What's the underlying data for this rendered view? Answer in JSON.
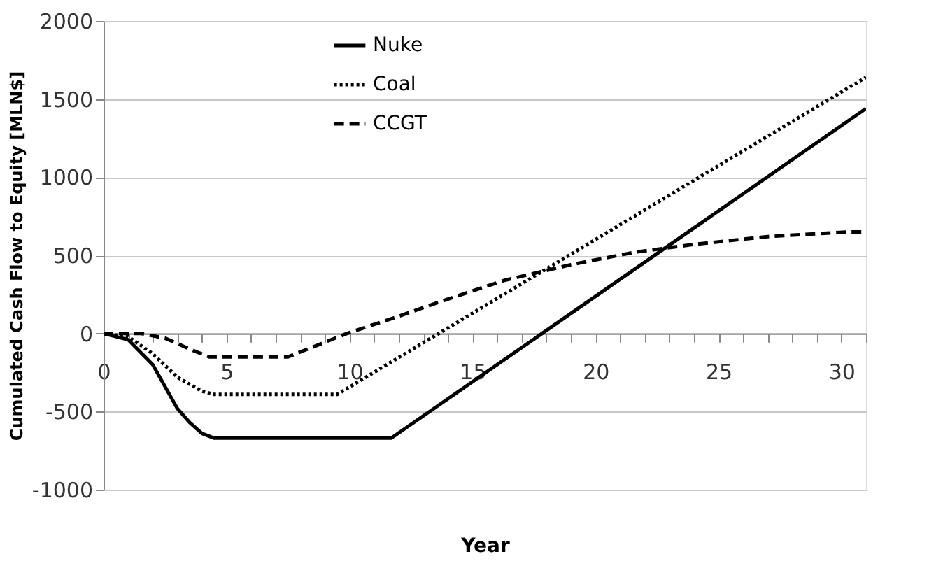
{
  "chart_data": {
    "type": "line",
    "xlabel": "Year",
    "ylabel": "Cumulated Cash Flow to Equity [MLN$]",
    "xlim": [
      0,
      31
    ],
    "ylim": [
      -1000,
      2000
    ],
    "xticks": [
      0,
      {
        "value": 1,
        "label": null
      },
      {
        "value": 2,
        "label": null
      },
      {
        "value": 3,
        "label": null
      },
      {
        "value": 4,
        "label": null
      },
      5,
      {
        "value": 6,
        "label": null
      },
      {
        "value": 7,
        "label": null
      },
      {
        "value": 8,
        "label": null
      },
      {
        "value": 9,
        "label": null
      },
      10,
      {
        "value": 11,
        "label": null
      },
      {
        "value": 12,
        "label": null
      },
      {
        "value": 13,
        "label": null
      },
      {
        "value": 14,
        "label": null
      },
      15,
      {
        "value": 16,
        "label": null
      },
      {
        "value": 17,
        "label": null
      },
      {
        "value": 18,
        "label": null
      },
      {
        "value": 19,
        "label": null
      },
      20,
      {
        "value": 21,
        "label": null
      },
      {
        "value": 22,
        "label": null
      },
      {
        "value": 23,
        "label": null
      },
      {
        "value": 24,
        "label": null
      },
      25,
      {
        "value": 26,
        "label": null
      },
      {
        "value": 27,
        "label": null
      },
      {
        "value": 28,
        "label": null
      },
      {
        "value": 29,
        "label": null
      },
      30,
      {
        "value": 31,
        "label": null
      }
    ],
    "yticks": [
      -1000,
      -500,
      0,
      500,
      1000,
      1500,
      2000
    ],
    "grid": "y",
    "legend": "top",
    "marker": "none",
    "series": [
      {
        "name": "Nuke",
        "color": "#000000",
        "line_style": "solid",
        "x": [
          0,
          1,
          2,
          3,
          3.5,
          4,
          4.5,
          11.7,
          31
        ],
        "values": [
          0,
          -40,
          -200,
          -480,
          -570,
          -640,
          -670,
          -670,
          1440
        ]
      },
      {
        "name": "Coal",
        "color": "#000000",
        "line_style": "dotted",
        "x": [
          0,
          1,
          2,
          3,
          4,
          4.5,
          9.5,
          31
        ],
        "values": [
          0,
          -20,
          -130,
          -280,
          -370,
          -390,
          -390,
          1640
        ]
      },
      {
        "name": "CCGT",
        "color": "#000000",
        "line_style": "dashed",
        "x": [
          0,
          1.5,
          2.5,
          3.5,
          4.3,
          7.5,
          9.9,
          12,
          14,
          16.3,
          19,
          21.6,
          24,
          27,
          30.3,
          31
        ],
        "values": [
          0,
          0,
          -30,
          -100,
          -150,
          -150,
          0,
          110,
          220,
          340,
          440,
          520,
          570,
          620,
          650,
          650
        ]
      }
    ]
  }
}
